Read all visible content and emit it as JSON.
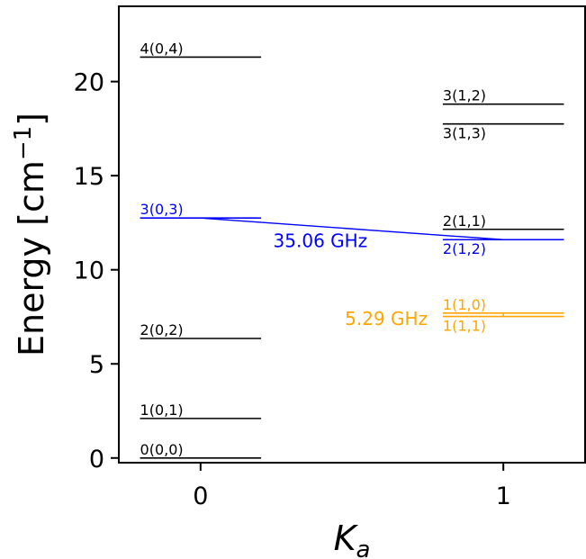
{
  "chart_data": {
    "type": "scatter",
    "title": "",
    "xlabel": "K",
    "xlabel_subscript": "a",
    "ylabel_prefix": "Energy [cm",
    "ylabel_superscript": "−1",
    "ylabel_suffix": "]",
    "xlim": [
      -0.27,
      1.27
    ],
    "ylim": [
      -0.25,
      24.0
    ],
    "x_ticks": [
      {
        "value": 0,
        "label": "0"
      },
      {
        "value": 1,
        "label": "1"
      }
    ],
    "y_ticks": [
      {
        "value": 0,
        "label": "0"
      },
      {
        "value": 5,
        "label": "5"
      },
      {
        "value": 10,
        "label": "10"
      },
      {
        "value": 15,
        "label": "15"
      },
      {
        "value": 20,
        "label": "20"
      }
    ],
    "grid": false,
    "colors": {
      "default": "#000000",
      "blue": "#0000ff",
      "orange": "#ffa500"
    },
    "levels": [
      {
        "ka": 0,
        "energy": 0.0,
        "label": "0(0,0)",
        "color": "#000000",
        "label_pos": "above"
      },
      {
        "ka": 0,
        "energy": 2.1,
        "label": "1(0,1)",
        "color": "#000000",
        "label_pos": "above"
      },
      {
        "ka": 0,
        "energy": 6.35,
        "label": "2(0,2)",
        "color": "#000000",
        "label_pos": "above"
      },
      {
        "ka": 0,
        "energy": 12.75,
        "label": "3(0,3)",
        "color": "#0000ff",
        "label_pos": "above"
      },
      {
        "ka": 0,
        "energy": 21.3,
        "label": "4(0,4)",
        "color": "#000000",
        "label_pos": "above"
      },
      {
        "ka": 1,
        "energy": 7.7,
        "label": "1(1,0)",
        "color": "#ffa500",
        "label_pos": "above"
      },
      {
        "ka": 1,
        "energy": 7.52,
        "label": "1(1,1)",
        "color": "#ffa500",
        "label_pos": "below"
      },
      {
        "ka": 1,
        "energy": 12.15,
        "label": "2(1,1)",
        "color": "#000000",
        "label_pos": "above"
      },
      {
        "ka": 1,
        "energy": 11.6,
        "label": "2(1,2)",
        "color": "#0000ff",
        "label_pos": "below"
      },
      {
        "ka": 1,
        "energy": 18.8,
        "label": "3(1,2)",
        "color": "#000000",
        "label_pos": "above"
      },
      {
        "ka": 1,
        "energy": 17.75,
        "label": "3(1,3)",
        "color": "#000000",
        "label_pos": "below"
      }
    ],
    "transitions": [
      {
        "from": {
          "ka": 0,
          "energy": 12.75
        },
        "to": {
          "ka": 1,
          "energy": 11.6
        },
        "label": "35.06 GHz",
        "color": "#0000ff",
        "label_at": {
          "ka": 0.24,
          "energy": 11.55
        },
        "anchor": "start"
      },
      {
        "from": {
          "ka": 1,
          "energy": 7.7
        },
        "to": {
          "ka": 1,
          "energy": 7.52
        },
        "label": "5.29 GHz",
        "color": "#ffa500",
        "label_at": {
          "ka": 0.75,
          "energy": 7.4
        },
        "anchor": "end"
      }
    ]
  }
}
